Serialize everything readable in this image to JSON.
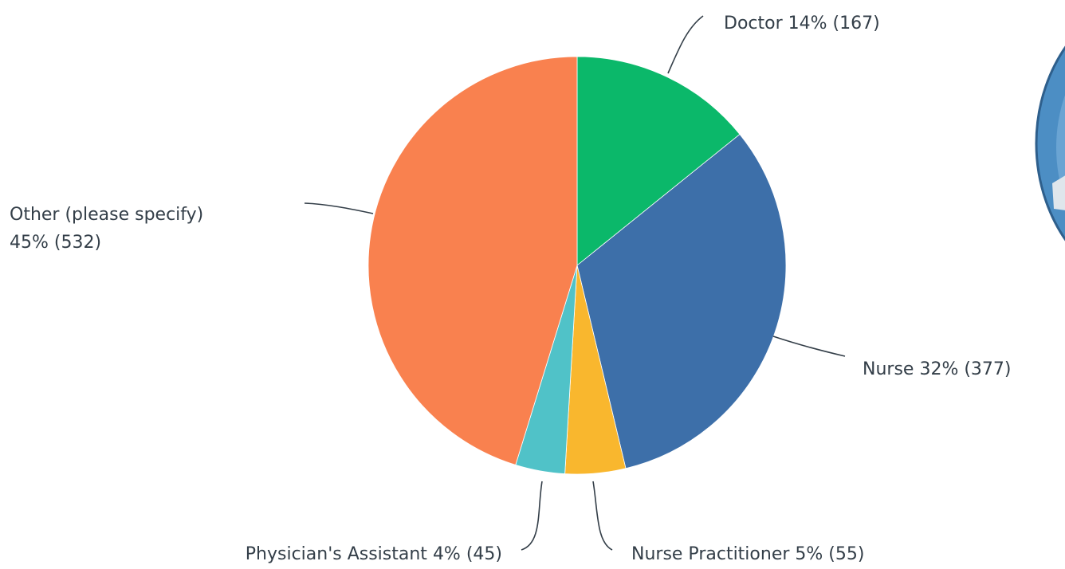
{
  "chart_data": {
    "type": "pie",
    "categories": [
      "Doctor",
      "Nurse",
      "Nurse Practitioner",
      "Physician's Assistant",
      "Other (please specify)"
    ],
    "values": [
      167,
      377,
      55,
      45,
      532
    ],
    "value_labels": [
      "14% (167)",
      "32% (377)",
      "5% (55)",
      "4% (45)",
      "45% (532)"
    ],
    "colors": [
      "#0bb86a",
      "#3d6fa9",
      "#f9b72e",
      "#50c2c8",
      "#f9814f"
    ]
  }
}
